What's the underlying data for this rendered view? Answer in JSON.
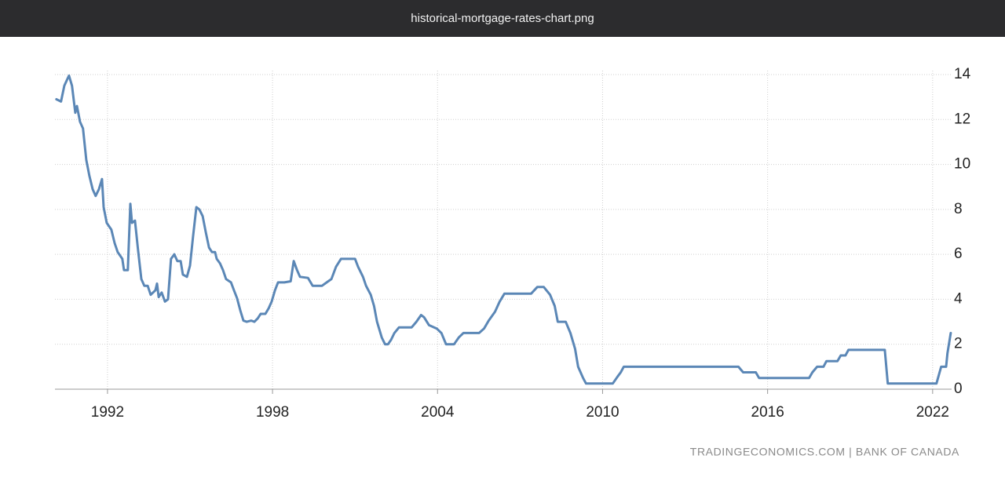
{
  "window": {
    "title": "historical-mortgage-rates-chart.png"
  },
  "chart_data": {
    "type": "line",
    "source": "TRADINGECONOMICS.COM | BANK OF CANADA",
    "color": "#5b87b6",
    "grid": true,
    "y_axis_side": "right",
    "xlim": [
      1990.09,
      2022.69
    ],
    "xticks": [
      1992,
      1998,
      2004,
      2010,
      2016,
      2022
    ],
    "ylim": [
      0,
      14
    ],
    "yticks": [
      0,
      2,
      4,
      6,
      8,
      10,
      12,
      14
    ],
    "x": [
      1990.14,
      1990.31,
      1990.43,
      1990.54,
      1990.6,
      1990.71,
      1990.83,
      1990.89,
      1991.0,
      1991.11,
      1991.23,
      1991.34,
      1991.46,
      1991.57,
      1991.69,
      1991.8,
      1991.86,
      1991.97,
      1992.14,
      1992.26,
      1992.37,
      1992.54,
      1992.6,
      1992.74,
      1992.83,
      1992.89,
      1993.0,
      1993.11,
      1993.23,
      1993.34,
      1993.46,
      1993.57,
      1993.74,
      1993.8,
      1993.86,
      1993.97,
      1994.09,
      1994.2,
      1994.31,
      1994.43,
      1994.54,
      1994.66,
      1994.74,
      1994.89,
      1995.0,
      1995.11,
      1995.23,
      1995.34,
      1995.46,
      1995.57,
      1995.69,
      1995.8,
      1995.91,
      1995.97,
      1996.09,
      1996.2,
      1996.31,
      1996.49,
      1996.6,
      1996.71,
      1996.83,
      1996.94,
      1997.06,
      1997.23,
      1997.34,
      1997.46,
      1997.57,
      1997.74,
      1997.86,
      1997.97,
      1998.09,
      1998.2,
      1998.43,
      1998.66,
      1998.77,
      1998.89,
      1999.0,
      1999.29,
      1999.46,
      1999.8,
      1999.97,
      2000.14,
      2000.31,
      2000.49,
      2001.0,
      2001.11,
      2001.29,
      2001.4,
      2001.57,
      2001.69,
      2001.8,
      2001.97,
      2002.09,
      2002.2,
      2002.31,
      2002.43,
      2002.6,
      2003.06,
      2003.23,
      2003.4,
      2003.51,
      2003.69,
      2003.97,
      2004.14,
      2004.31,
      2004.6,
      2004.77,
      2004.94,
      2005.51,
      2005.69,
      2005.86,
      2006.09,
      2006.26,
      2006.43,
      2007.4,
      2007.63,
      2007.86,
      2008.09,
      2008.26,
      2008.37,
      2008.66,
      2008.83,
      2009.0,
      2009.11,
      2009.29,
      2009.4,
      2010.37,
      2010.54,
      2010.66,
      2010.77,
      2014.94,
      2015.11,
      2015.57,
      2015.69,
      2017.51,
      2017.63,
      2017.8,
      2018.03,
      2018.14,
      2018.54,
      2018.66,
      2018.83,
      2018.94,
      2020.26,
      2020.37,
      2022.14,
      2022.31,
      2022.49,
      2022.54,
      2022.66
    ],
    "values": [
      12.9,
      12.8,
      13.5,
      13.8,
      13.95,
      13.5,
      12.3,
      12.6,
      11.9,
      11.6,
      10.2,
      9.5,
      8.9,
      8.6,
      8.9,
      9.35,
      8.1,
      7.4,
      7.1,
      6.5,
      6.1,
      5.8,
      5.3,
      5.3,
      8.25,
      7.4,
      7.5,
      6.2,
      4.9,
      4.6,
      4.6,
      4.2,
      4.4,
      4.7,
      4.1,
      4.3,
      3.9,
      4.0,
      5.8,
      6.0,
      5.7,
      5.7,
      5.1,
      5.0,
      5.5,
      6.8,
      8.1,
      8.0,
      7.7,
      7.0,
      6.3,
      6.1,
      6.1,
      5.8,
      5.6,
      5.3,
      4.9,
      4.75,
      4.4,
      4.05,
      3.5,
      3.05,
      3.0,
      3.05,
      3.0,
      3.15,
      3.35,
      3.35,
      3.6,
      3.9,
      4.4,
      4.75,
      4.75,
      4.8,
      5.7,
      5.3,
      5.0,
      4.95,
      4.6,
      4.6,
      4.75,
      4.9,
      5.45,
      5.8,
      5.8,
      5.45,
      5.0,
      4.6,
      4.2,
      3.7,
      3.0,
      2.3,
      2.0,
      2.0,
      2.2,
      2.5,
      2.75,
      2.75,
      3.0,
      3.3,
      3.2,
      2.85,
      2.7,
      2.5,
      2.0,
      2.0,
      2.3,
      2.5,
      2.5,
      2.7,
      3.05,
      3.45,
      3.9,
      4.25,
      4.25,
      4.55,
      4.55,
      4.2,
      3.7,
      3.0,
      3.0,
      2.5,
      1.8,
      1.0,
      0.5,
      0.25,
      0.25,
      0.55,
      0.75,
      1.0,
      1.0,
      0.75,
      0.75,
      0.5,
      0.5,
      0.75,
      1.0,
      1.0,
      1.25,
      1.25,
      1.5,
      1.5,
      1.75,
      1.75,
      0.25,
      0.25,
      1.0,
      1.0,
      1.6,
      2.5
    ]
  }
}
